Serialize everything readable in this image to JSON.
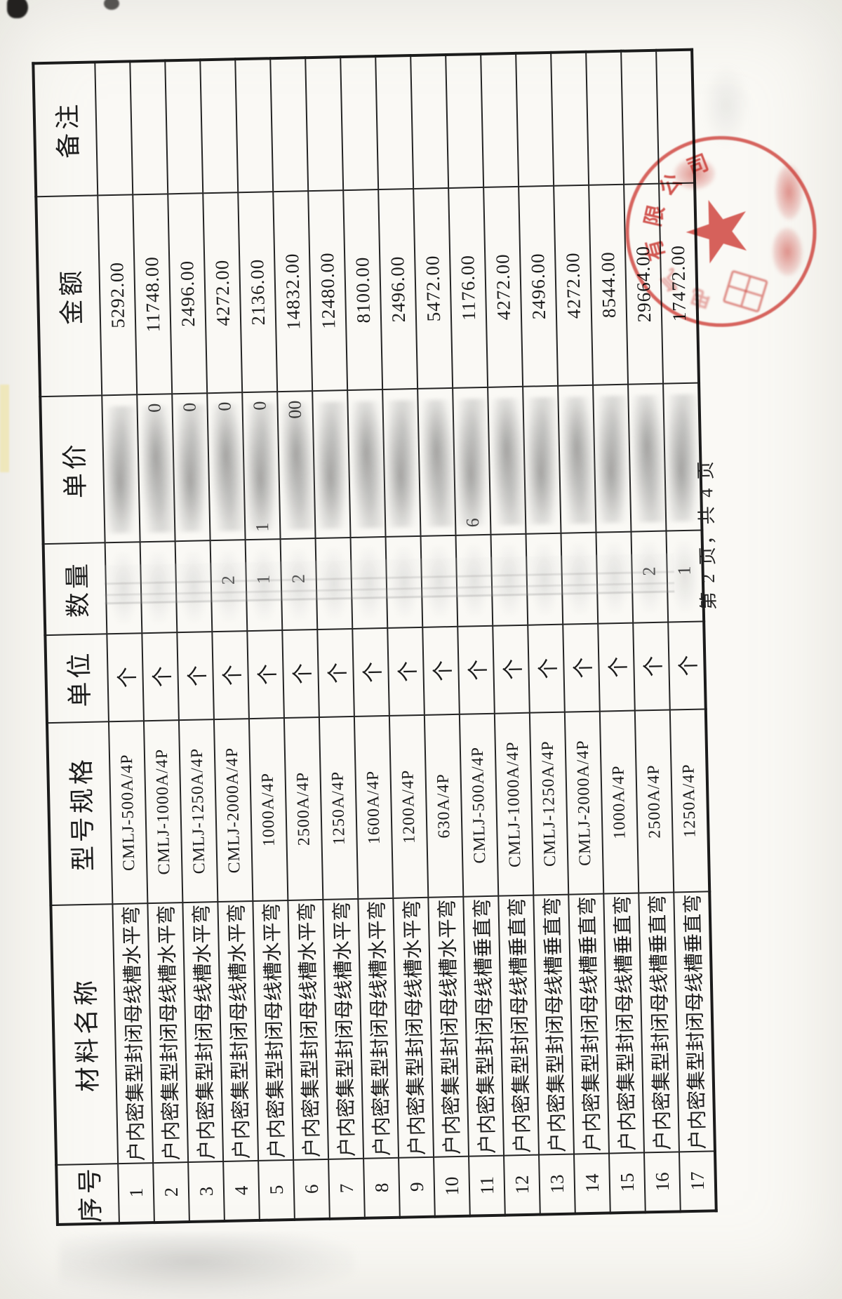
{
  "page": {
    "footer_label": "第 2 页，共 4 页"
  },
  "table": {
    "headers": [
      "序号",
      "材料名称",
      "型号规格",
      "单位",
      "数量",
      "单价",
      "金额",
      "备注"
    ],
    "rows": [
      {
        "no": "1",
        "name": "户内密集型封闭母线槽水平弯",
        "spec": "CMLJ-500A/4P",
        "unit": "个",
        "qty": "",
        "price_right": "",
        "price_left": "",
        "amount": "5292.00",
        "remark": ""
      },
      {
        "no": "2",
        "name": "户内密集型封闭母线槽水平弯",
        "spec": "CMLJ-1000A/4P",
        "unit": "个",
        "qty": "",
        "price_right": "0",
        "price_left": "",
        "amount": "11748.00",
        "remark": ""
      },
      {
        "no": "3",
        "name": "户内密集型封闭母线槽水平弯",
        "spec": "CMLJ-1250A/4P",
        "unit": "个",
        "qty": "",
        "price_right": "0",
        "price_left": "",
        "amount": "2496.00",
        "remark": ""
      },
      {
        "no": "4",
        "name": "户内密集型封闭母线槽水平弯",
        "spec": "CMLJ-2000A/4P",
        "unit": "个",
        "qty": "2",
        "price_right": "0",
        "price_left": "",
        "amount": "4272.00",
        "remark": ""
      },
      {
        "no": "5",
        "name": "户内密集型封闭母线槽水平弯",
        "spec": "1000A/4P",
        "unit": "个",
        "qty": "1",
        "price_right": "0",
        "price_left": "1",
        "amount": "2136.00",
        "remark": ""
      },
      {
        "no": "6",
        "name": "户内密集型封闭母线槽水平弯",
        "spec": "2500A/4P",
        "unit": "个",
        "qty": "2",
        "price_right": "00",
        "price_left": "",
        "amount": "14832.00",
        "remark": ""
      },
      {
        "no": "7",
        "name": "户内密集型封闭母线槽水平弯",
        "spec": "1250A/4P",
        "unit": "个",
        "qty": "",
        "price_right": "",
        "price_left": "",
        "amount": "12480.00",
        "remark": ""
      },
      {
        "no": "8",
        "name": "户内密集型封闭母线槽水平弯",
        "spec": "1600A/4P",
        "unit": "个",
        "qty": "",
        "price_right": "",
        "price_left": "",
        "amount": "8100.00",
        "remark": ""
      },
      {
        "no": "9",
        "name": "户内密集型封闭母线槽水平弯",
        "spec": "1200A/4P",
        "unit": "个",
        "qty": "",
        "price_right": "",
        "price_left": "",
        "amount": "2496.00",
        "remark": ""
      },
      {
        "no": "10",
        "name": "户内密集型封闭母线槽水平弯",
        "spec": "630A/4P",
        "unit": "个",
        "qty": "",
        "price_right": "",
        "price_left": "",
        "amount": "5472.00",
        "remark": ""
      },
      {
        "no": "11",
        "name": "户内密集型封闭母线槽垂直弯",
        "spec": "CMLJ-500A/4P",
        "unit": "个",
        "qty": "",
        "price_right": "",
        "price_left": "6",
        "amount": "1176.00",
        "remark": ""
      },
      {
        "no": "12",
        "name": "户内密集型封闭母线槽垂直弯",
        "spec": "CMLJ-1000A/4P",
        "unit": "个",
        "qty": "",
        "price_right": "",
        "price_left": "",
        "amount": "4272.00",
        "remark": ""
      },
      {
        "no": "13",
        "name": "户内密集型封闭母线槽垂直弯",
        "spec": "CMLJ-1250A/4P",
        "unit": "个",
        "qty": "",
        "price_right": "",
        "price_left": "",
        "amount": "2496.00",
        "remark": ""
      },
      {
        "no": "14",
        "name": "户内密集型封闭母线槽垂直弯",
        "spec": "CMLJ-2000A/4P",
        "unit": "个",
        "qty": "",
        "price_right": "",
        "price_left": "",
        "amount": "4272.00",
        "remark": ""
      },
      {
        "no": "15",
        "name": "户内密集型封闭母线槽垂直弯",
        "spec": "1000A/4P",
        "unit": "个",
        "qty": "",
        "price_right": "",
        "price_left": "",
        "amount": "8544.00",
        "remark": ""
      },
      {
        "no": "16",
        "name": "户内密集型封闭母线槽垂直弯",
        "spec": "2500A/4P",
        "unit": "个",
        "qty": "2",
        "price_right": "",
        "price_left": "",
        "amount": "29664.00",
        "remark": ""
      },
      {
        "no": "17",
        "name": "户内密集型封闭母线槽垂直弯",
        "spec": "1250A/4P",
        "unit": "个",
        "qty": "1",
        "price_right": "",
        "price_left": "",
        "amount": "17472.00",
        "remark": ""
      }
    ]
  },
  "stamp": {
    "arc_text": "电气有限公司",
    "center_symbol": "★",
    "color": "#c4241e"
  },
  "colors": {
    "ink": "#1c1c1c",
    "paper": "#faf9f5",
    "stamp_red": "#c4241e"
  }
}
